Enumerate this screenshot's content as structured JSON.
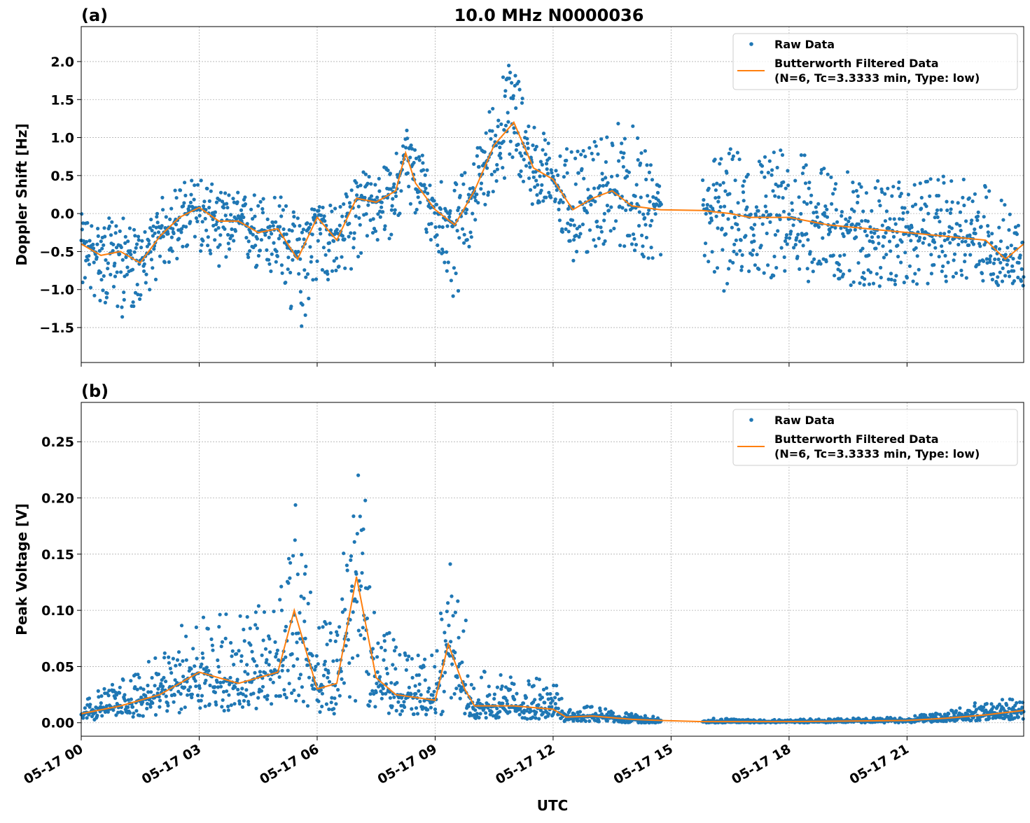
{
  "figure_title": "10.0 MHz N0000036",
  "x_tick_labels": [
    "05-17 00",
    "05-17 03",
    "05-17 06",
    "05-17 09",
    "05-17 12",
    "05-17 15",
    "05-17 18",
    "05-17 21"
  ],
  "x_ticks": [
    "05-17 00:00",
    "05-17 03:00",
    "05-17 06:00",
    "05-17 09:00",
    "05-17 12:00",
    "05-17 15:00",
    "05-17 18:00",
    "05-17 21:00"
  ],
  "xlabel": "UTC",
  "colors": {
    "raw": "#1f77b4",
    "filtered": "#ff7f0e",
    "grid": "#b0b0b0"
  },
  "chart_data": [
    {
      "type": "scatter",
      "panel_label": "(a)",
      "ylabel": "Doppler Shift [Hz]",
      "xlim": [
        "05-17 00:00",
        "05-17 23:58"
      ],
      "ylim": [
        -1.96,
        2.46
      ],
      "y_ticks": [
        -1.5,
        -1.0,
        -0.5,
        0.0,
        0.5,
        1.0,
        1.5,
        2.0
      ],
      "y_tick_labels": [
        "−1.5",
        "−1.0",
        "−0.5",
        "0.0",
        "0.5",
        "1.0",
        "1.5",
        "2.0"
      ],
      "grid": true,
      "legend": {
        "placement": "upper-right",
        "entries": [
          "Raw Data",
          "Butterworth Filtered Data",
          "(N=6, Tc=3.3333 min, Type: low)"
        ]
      },
      "raw_gap": [
        "05-17 14:45",
        "05-17 15:48"
      ],
      "series_note_columns": [
        "time",
        "filtered",
        "raw_low",
        "raw_high"
      ],
      "series": [
        [
          "05-17 00:00",
          -0.4,
          -1.0,
          0.0
        ],
        [
          "05-17 00:30",
          -0.55,
          -1.2,
          -0.1
        ],
        [
          "05-17 01:00",
          -0.5,
          -1.4,
          0.0
        ],
        [
          "05-17 01:30",
          -0.65,
          -1.2,
          -0.3
        ],
        [
          "05-17 02:00",
          -0.3,
          -0.8,
          0.2
        ],
        [
          "05-17 02:30",
          -0.05,
          -0.6,
          0.4
        ],
        [
          "05-17 03:00",
          0.08,
          -0.5,
          0.55
        ],
        [
          "05-17 03:30",
          -0.1,
          -0.7,
          0.3
        ],
        [
          "05-17 04:00",
          -0.1,
          -0.6,
          0.3
        ],
        [
          "05-17 04:30",
          -0.25,
          -0.8,
          0.3
        ],
        [
          "05-17 05:00",
          -0.2,
          -0.9,
          0.3
        ],
        [
          "05-17 05:30",
          -0.6,
          -1.7,
          0.0
        ],
        [
          "05-17 06:00",
          -0.05,
          -0.9,
          0.2
        ],
        [
          "05-17 06:30",
          -0.35,
          -1.0,
          0.1
        ],
        [
          "05-17 07:00",
          0.2,
          -0.7,
          0.6
        ],
        [
          "05-17 07:30",
          0.15,
          -0.4,
          0.5
        ],
        [
          "05-17 08:00",
          0.3,
          -0.3,
          0.8
        ],
        [
          "05-17 08:15",
          0.8,
          0.2,
          1.2
        ],
        [
          "05-17 08:30",
          0.4,
          -0.1,
          1.0
        ],
        [
          "05-17 09:00",
          0.05,
          -0.5,
          0.6
        ],
        [
          "05-17 09:30",
          -0.15,
          -1.2,
          0.4
        ],
        [
          "05-17 10:00",
          0.3,
          -0.2,
          0.8
        ],
        [
          "05-17 10:30",
          0.9,
          0.3,
          1.6
        ],
        [
          "05-17 11:00",
          1.2,
          0.5,
          2.2
        ],
        [
          "05-17 11:30",
          0.6,
          0.1,
          1.2
        ],
        [
          "05-17 12:00",
          0.45,
          -0.1,
          1.0
        ],
        [
          "05-17 12:30",
          0.05,
          -0.7,
          0.8
        ],
        [
          "05-17 13:00",
          0.2,
          -0.5,
          0.9
        ],
        [
          "05-17 13:30",
          0.3,
          -0.4,
          1.3
        ],
        [
          "05-17 14:00",
          0.1,
          -0.5,
          1.2
        ],
        [
          "05-17 14:44",
          0.05,
          -0.7,
          0.4
        ],
        [
          "05-17 15:48",
          0.04,
          -0.9,
          0.8
        ],
        [
          "05-17 16:30",
          0.0,
          -1.1,
          0.9
        ],
        [
          "05-17 17:00",
          -0.05,
          -0.8,
          0.8
        ],
        [
          "05-17 18:00",
          -0.05,
          -0.9,
          0.9
        ],
        [
          "05-17 19:00",
          -0.15,
          -0.9,
          0.6
        ],
        [
          "05-17 20:00",
          -0.2,
          -1.0,
          0.5
        ],
        [
          "05-17 21:00",
          -0.25,
          -1.0,
          0.4
        ],
        [
          "05-17 22:00",
          -0.3,
          -0.9,
          0.5
        ],
        [
          "05-17 23:00",
          -0.35,
          -0.9,
          0.4
        ],
        [
          "05-17 23:30",
          -0.6,
          -1.0,
          0.2
        ],
        [
          "05-17 23:58",
          -0.4,
          -1.0,
          0.1
        ]
      ]
    },
    {
      "type": "scatter",
      "panel_label": "(b)",
      "ylabel": "Peak Voltage [V]",
      "xlim": [
        "05-17 00:00",
        "05-17 23:58"
      ],
      "ylim": [
        -0.012,
        0.285
      ],
      "y_ticks": [
        0.0,
        0.05,
        0.1,
        0.15,
        0.2,
        0.25
      ],
      "y_tick_labels": [
        "0.00",
        "0.05",
        "0.10",
        "0.15",
        "0.20",
        "0.25"
      ],
      "grid": true,
      "legend": {
        "placement": "upper-right",
        "entries": [
          "Raw Data",
          "Butterworth Filtered Data",
          "(N=6, Tc=3.3333 min, Type: low)"
        ]
      },
      "raw_gap": [
        "05-17 14:45",
        "05-17 15:48"
      ],
      "series_note_columns": [
        "time",
        "filtered",
        "raw_low",
        "raw_high"
      ],
      "series": [
        [
          "05-17 00:00",
          0.008,
          0.002,
          0.02
        ],
        [
          "05-17 01:00",
          0.015,
          0.004,
          0.04
        ],
        [
          "05-17 02:00",
          0.025,
          0.006,
          0.06
        ],
        [
          "05-17 03:00",
          0.045,
          0.01,
          0.11
        ],
        [
          "05-17 04:00",
          0.035,
          0.01,
          0.1
        ],
        [
          "05-17 05:00",
          0.045,
          0.01,
          0.11
        ],
        [
          "05-17 05:25",
          0.1,
          0.02,
          0.2
        ],
        [
          "05-17 06:00",
          0.03,
          0.008,
          0.09
        ],
        [
          "05-17 06:30",
          0.035,
          0.008,
          0.1
        ],
        [
          "05-17 07:00",
          0.13,
          0.02,
          0.27
        ],
        [
          "05-17 07:30",
          0.04,
          0.01,
          0.11
        ],
        [
          "05-17 08:00",
          0.025,
          0.006,
          0.07
        ],
        [
          "05-17 09:00",
          0.02,
          0.005,
          0.06
        ],
        [
          "05-17 09:20",
          0.07,
          0.01,
          0.15
        ],
        [
          "05-17 09:45",
          0.03,
          0.006,
          0.1
        ],
        [
          "05-17 10:00",
          0.015,
          0.004,
          0.05
        ],
        [
          "05-17 11:00",
          0.015,
          0.003,
          0.04
        ],
        [
          "05-17 12:00",
          0.012,
          0.003,
          0.04
        ],
        [
          "05-17 12:20",
          0.005,
          0.001,
          0.015
        ],
        [
          "05-17 13:00",
          0.006,
          0.001,
          0.015
        ],
        [
          "05-17 14:00",
          0.003,
          0.0,
          0.008
        ],
        [
          "05-17 14:44",
          0.002,
          0.0,
          0.005
        ],
        [
          "05-17 15:48",
          0.001,
          0.0,
          0.004
        ],
        [
          "05-17 18:00",
          0.001,
          0.0,
          0.003
        ],
        [
          "05-17 21:00",
          0.002,
          0.0,
          0.005
        ],
        [
          "05-17 22:00",
          0.004,
          0.001,
          0.012
        ],
        [
          "05-17 23:00",
          0.007,
          0.002,
          0.02
        ],
        [
          "05-17 23:58",
          0.011,
          0.003,
          0.022
        ]
      ]
    }
  ]
}
